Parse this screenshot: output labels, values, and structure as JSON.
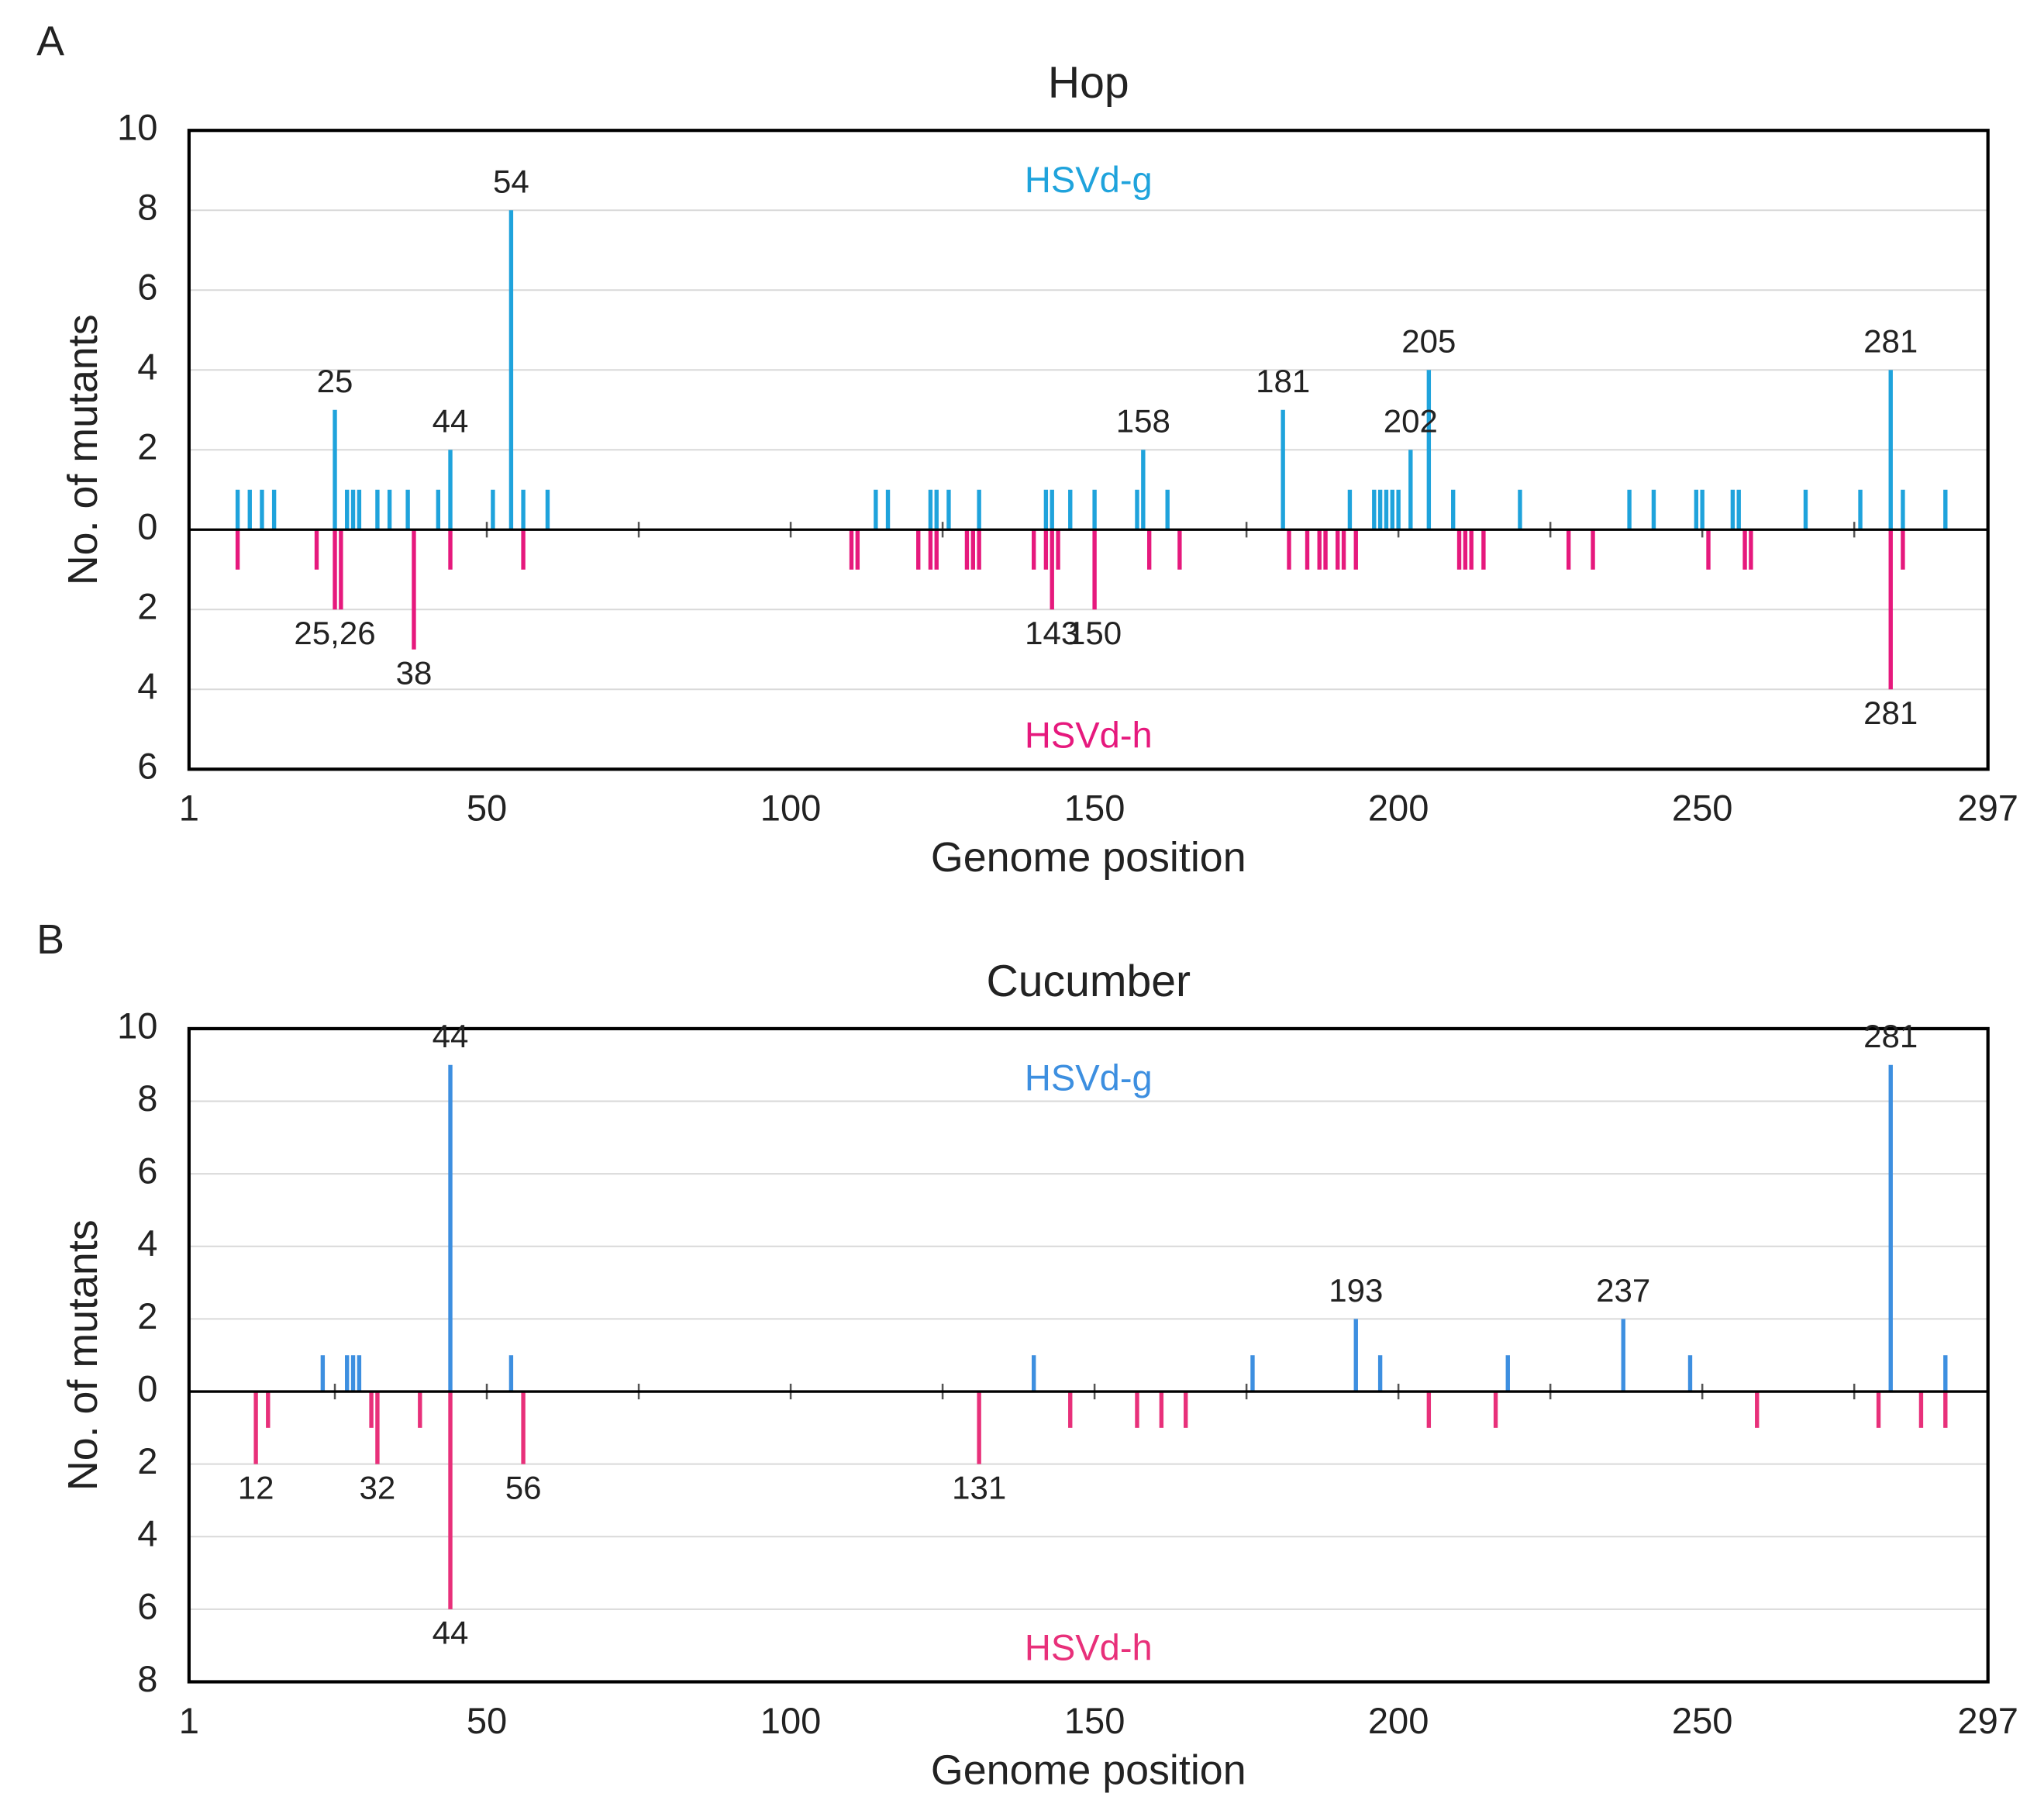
{
  "chart_data": [
    {
      "type": "bar",
      "panel_label": "A",
      "title": "Hop",
      "xlabel": "Genome position",
      "ylabel": "No. of mutants",
      "xlim": [
        1,
        297
      ],
      "xticks": [
        1,
        50,
        100,
        150,
        200,
        250,
        297
      ],
      "xminorticks": [
        25,
        50,
        75,
        100,
        125,
        150,
        175,
        200,
        225,
        250,
        275
      ],
      "ylim": [
        -6,
        10
      ],
      "yticks": [
        10,
        8,
        6,
        4,
        2,
        0,
        {
          "value": -2,
          "label": "2"
        },
        {
          "value": -4,
          "label": "4"
        },
        {
          "value": -6,
          "label": "6"
        }
      ],
      "grid": true,
      "series": [
        {
          "name": "HSVd-g",
          "color": "#1fa3dc",
          "x": [
            9,
            11,
            13,
            15,
            25,
            27,
            28,
            29,
            32,
            34,
            37,
            42,
            44,
            51,
            54,
            56,
            60,
            114,
            116,
            123,
            124,
            126,
            131,
            142,
            143,
            146,
            150,
            157,
            158,
            162,
            181,
            192,
            196,
            197,
            198,
            199,
            200,
            202,
            205,
            209,
            220,
            238,
            242,
            249,
            250,
            255,
            256,
            267,
            276,
            281,
            283,
            290
          ],
          "values": [
            1,
            1,
            1,
            1,
            3,
            1,
            1,
            1,
            1,
            1,
            1,
            1,
            2,
            1,
            8,
            1,
            1,
            1,
            1,
            1,
            1,
            1,
            1,
            1,
            1,
            1,
            1,
            1,
            2,
            1,
            3,
            1,
            1,
            1,
            1,
            1,
            1,
            2,
            4,
            1,
            1,
            1,
            1,
            1,
            1,
            1,
            1,
            1,
            1,
            4,
            1,
            1
          ]
        },
        {
          "name": "HSVd-h",
          "color": "#e6197d",
          "x": [
            9,
            22,
            25,
            26,
            38,
            44,
            56,
            110,
            111,
            121,
            123,
            124,
            129,
            130,
            131,
            140,
            142,
            143,
            144,
            150,
            159,
            164,
            182,
            185,
            187,
            188,
            190,
            191,
            193,
            210,
            211,
            212,
            214,
            228,
            232,
            251,
            257,
            258,
            281,
            283
          ],
          "values": [
            -1,
            -1,
            -2,
            -2,
            -3,
            -1,
            -1,
            -1,
            -1,
            -1,
            -1,
            -1,
            -1,
            -1,
            -1,
            -1,
            -1,
            -2,
            -1,
            -2,
            -1,
            -1,
            -1,
            -1,
            -1,
            -1,
            -1,
            -1,
            -1,
            -1,
            -1,
            -1,
            -1,
            -1,
            -1,
            -1,
            -1,
            -1,
            -4,
            -1
          ]
        }
      ],
      "annotations": [
        {
          "text": "25",
          "x": 25,
          "y": 3
        },
        {
          "text": "44",
          "x": 44,
          "y": 2
        },
        {
          "text": "54",
          "x": 54,
          "y": 8
        },
        {
          "text": "158",
          "x": 158,
          "y": 2
        },
        {
          "text": "181",
          "x": 181,
          "y": 3
        },
        {
          "text": "202",
          "x": 202,
          "y": 2
        },
        {
          "text": "205",
          "x": 205,
          "y": 4
        },
        {
          "text": "281",
          "x": 281,
          "y": 4
        },
        {
          "text": "25,26",
          "x": 25,
          "y": -2
        },
        {
          "text": "38",
          "x": 38,
          "y": -3
        },
        {
          "text": "143",
          "x": 143,
          "y": -2
        },
        {
          "text": "150",
          "x": 150,
          "y": -2
        },
        {
          "text": "281",
          "x": 281,
          "y": -4
        }
      ]
    },
    {
      "type": "bar",
      "panel_label": "B",
      "title": "Cucumber",
      "xlabel": "Genome position",
      "ylabel": "No. of mutants",
      "xlim": [
        1,
        297
      ],
      "xticks": [
        1,
        50,
        100,
        150,
        200,
        250,
        297
      ],
      "xminorticks": [
        25,
        50,
        75,
        100,
        125,
        150,
        175,
        200,
        225,
        250,
        275
      ],
      "ylim": [
        -8,
        10
      ],
      "yticks": [
        10,
        8,
        6,
        4,
        2,
        0,
        {
          "value": -2,
          "label": "2"
        },
        {
          "value": -4,
          "label": "4"
        },
        {
          "value": -6,
          "label": "6"
        },
        {
          "value": -8,
          "label": "8"
        }
      ],
      "grid": true,
      "series": [
        {
          "name": "HSVd-g",
          "color": "#3d8fe0",
          "x": [
            23,
            27,
            28,
            29,
            44,
            54,
            140,
            176,
            193,
            197,
            218,
            237,
            248,
            281,
            290
          ],
          "values": [
            1,
            1,
            1,
            1,
            9,
            1,
            1,
            1,
            2,
            1,
            1,
            2,
            1,
            9,
            1
          ]
        },
        {
          "name": "HSVd-h",
          "color": "#e8307a",
          "x": [
            12,
            14,
            31,
            32,
            39,
            44,
            56,
            131,
            146,
            157,
            161,
            165,
            205,
            216,
            259,
            279,
            286,
            290
          ],
          "values": [
            -2,
            -1,
            -1,
            -2,
            -1,
            -6,
            -2,
            -2,
            -1,
            -1,
            -1,
            -1,
            -1,
            -1,
            -1,
            -1,
            -1,
            -1
          ]
        }
      ],
      "annotations": [
        {
          "text": "44",
          "x": 44,
          "y": 9
        },
        {
          "text": "193",
          "x": 193,
          "y": 2
        },
        {
          "text": "237",
          "x": 237,
          "y": 2
        },
        {
          "text": "281",
          "x": 281,
          "y": 9
        },
        {
          "text": "12",
          "x": 12,
          "y": -2
        },
        {
          "text": "32",
          "x": 32,
          "y": -2
        },
        {
          "text": "56",
          "x": 56,
          "y": -2
        },
        {
          "text": "131",
          "x": 131,
          "y": -2
        },
        {
          "text": "44",
          "x": 44,
          "y": -6
        }
      ]
    }
  ]
}
